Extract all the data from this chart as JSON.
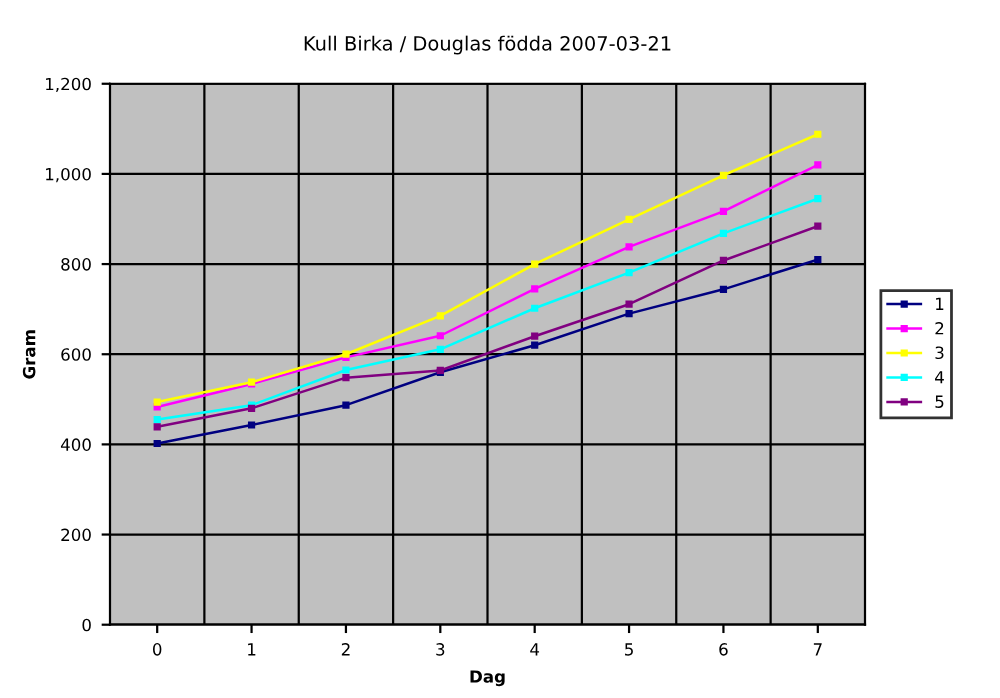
{
  "chart_data": {
    "type": "line",
    "title": "Kull Birka / Douglas födda 2007-03-21",
    "xlabel": "Dag",
    "ylabel": "Gram",
    "categories": [
      "0",
      "1",
      "2",
      "3",
      "4",
      "5",
      "6",
      "7"
    ],
    "series": [
      {
        "name": "1",
        "color": "#000080",
        "values": [
          402,
          443,
          487,
          560,
          620,
          690,
          744,
          810
        ]
      },
      {
        "name": "2",
        "color": "#ff00ff",
        "values": [
          483,
          534,
          593,
          641,
          745,
          838,
          917,
          1020
        ]
      },
      {
        "name": "3",
        "color": "#ffff00",
        "values": [
          494,
          538,
          600,
          685,
          800,
          899,
          997,
          1088
        ]
      },
      {
        "name": "4",
        "color": "#00ffff",
        "values": [
          455,
          487,
          565,
          611,
          702,
          781,
          868,
          945
        ]
      },
      {
        "name": "5",
        "color": "#800080",
        "values": [
          439,
          480,
          548,
          564,
          640,
          711,
          808,
          884
        ]
      }
    ],
    "ylim": [
      0,
      1200
    ],
    "yticks": [
      0,
      200,
      400,
      600,
      800,
      {
        "value": 1000,
        "label": "1,000"
      },
      {
        "value": 1200,
        "label": "1,200"
      }
    ],
    "grid": true,
    "legend": "right",
    "marker": "square",
    "line_style": "solid"
  }
}
